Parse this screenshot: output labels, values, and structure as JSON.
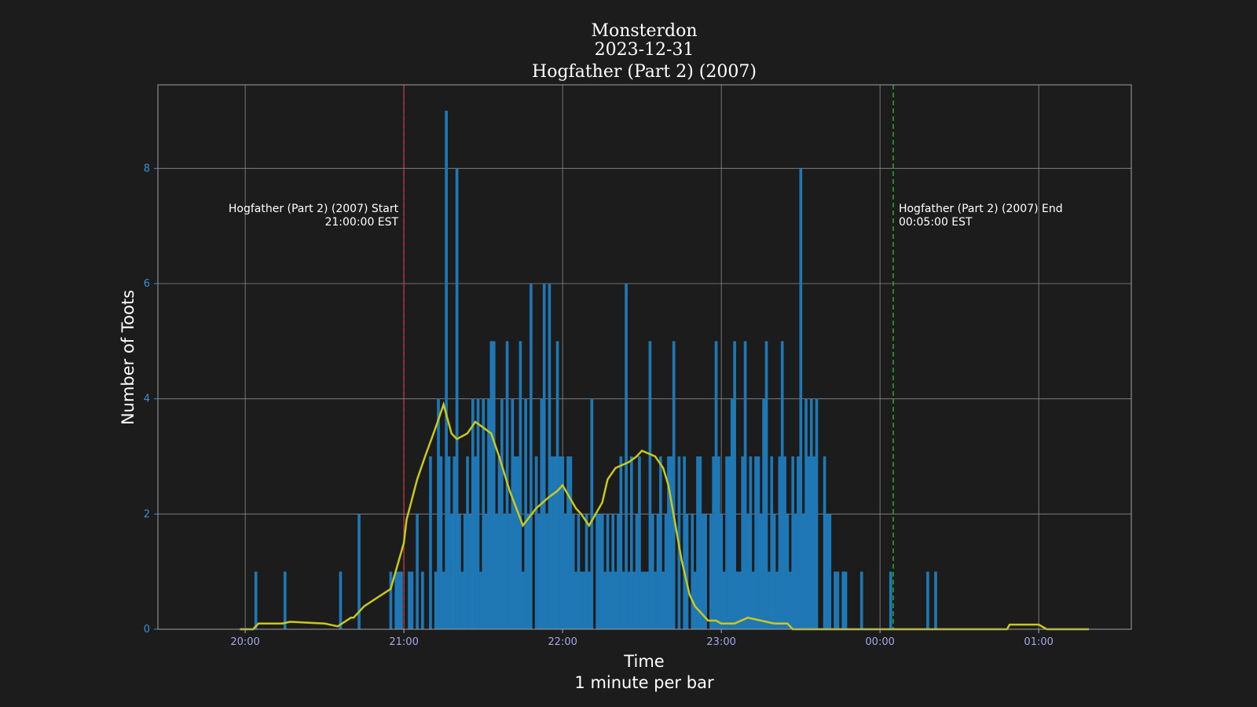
{
  "chart_data": {
    "type": "bar",
    "title_lines": [
      "Monsterdon",
      "2023-12-31",
      "Hogfather (Part 2) (2007)"
    ],
    "xlabel": "Time",
    "xlabel_sub": "1 minute per bar",
    "ylabel": "Number of Toots",
    "ylim": [
      0,
      9.45
    ],
    "yticks": [
      "0",
      "2",
      "4",
      "6",
      "8"
    ],
    "xticks": [
      "20:00",
      "21:00",
      "22:00",
      "23:00",
      "00:00",
      "01:00"
    ],
    "grid": true,
    "bar_width_minutes": 1,
    "x_start": "19:27",
    "x_end": "01:35",
    "series": [
      {
        "kind": "bar",
        "color": "#1f77b4",
        "x_first": "20:04",
        "values": [
          1,
          0,
          0,
          0,
          0,
          0,
          0,
          0,
          0,
          0,
          0,
          1,
          0,
          0,
          0,
          0,
          0,
          0,
          0,
          0,
          0,
          0,
          0,
          0,
          0,
          0,
          0,
          0,
          0,
          0,
          0,
          0,
          1,
          0,
          0,
          0,
          0,
          0,
          0,
          2,
          0,
          0,
          0,
          0,
          0,
          0,
          0,
          0,
          0,
          0,
          0,
          1,
          0,
          1,
          1,
          1,
          0,
          0,
          1,
          1,
          0,
          2,
          0,
          1,
          0,
          0,
          3,
          0,
          1,
          4,
          3,
          1,
          9,
          3,
          2,
          3,
          8,
          2,
          1,
          2,
          3,
          2,
          4,
          3,
          4,
          1,
          4,
          2,
          4,
          5,
          5,
          2,
          3,
          4,
          2,
          5,
          2,
          4,
          3,
          3,
          5,
          1,
          4,
          2,
          6,
          0,
          3,
          2,
          4,
          6,
          2,
          6,
          3,
          3,
          5,
          3,
          3,
          2,
          3,
          3,
          2,
          1,
          2,
          1,
          1,
          2,
          1,
          4,
          0,
          2,
          2,
          2,
          1,
          2,
          1,
          2,
          1,
          2,
          3,
          1,
          6,
          1,
          3,
          1,
          2,
          3,
          1,
          1,
          1,
          5,
          2,
          1,
          2,
          3,
          1,
          2,
          3,
          3,
          5,
          0,
          3,
          0,
          3,
          2,
          0,
          2,
          1,
          3,
          3,
          2,
          2,
          0,
          2,
          3,
          5,
          3,
          2,
          1,
          3,
          3,
          4,
          5,
          1,
          1,
          3,
          5,
          2,
          3,
          1,
          3,
          3,
          2,
          4,
          5,
          1,
          3,
          2,
          1,
          3,
          5,
          3,
          2,
          1,
          3,
          2,
          3,
          8,
          2,
          4,
          3,
          4,
          3,
          4,
          0,
          0,
          3,
          2,
          2,
          0,
          1,
          1,
          0,
          1,
          1,
          0,
          0,
          0,
          0,
          0,
          1,
          0,
          0,
          0,
          0,
          0,
          0,
          0,
          0,
          0,
          0,
          1,
          0,
          0,
          0,
          0,
          0,
          0,
          0,
          0,
          0,
          0,
          0,
          0,
          0,
          1,
          0,
          0,
          1
        ]
      },
      {
        "kind": "line",
        "label": "",
        "color": "#c8c81e",
        "x": [
          "19:58",
          "20:03",
          "20:05",
          "20:14",
          "20:17",
          "20:30",
          "20:35",
          "20:40",
          "20:41",
          "20:45",
          "20:50",
          "20:55",
          "21:00",
          "21:01",
          "21:05",
          "21:08",
          "21:12",
          "21:15",
          "21:18",
          "21:20",
          "21:24",
          "21:27",
          "21:30",
          "21:33",
          "21:36",
          "21:40",
          "21:45",
          "21:50",
          "21:55",
          "21:58",
          "22:00",
          "22:05",
          "22:07",
          "22:10",
          "22:15",
          "22:17",
          "22:20",
          "22:25",
          "22:28",
          "22:30",
          "22:35",
          "22:38",
          "22:40",
          "22:45",
          "22:48",
          "22:50",
          "22:55",
          "22:58",
          "23:00",
          "23:05",
          "23:10",
          "23:15",
          "23:20",
          "23:25",
          "23:27",
          "00:00",
          "00:48",
          "00:49",
          "00:55",
          "01:00",
          "01:03",
          "01:19"
        ],
        "y": [
          0,
          0,
          0.1,
          0.1,
          0.13,
          0.1,
          0.05,
          0.2,
          0.2,
          0.4,
          0.55,
          0.7,
          1.5,
          1.9,
          2.6,
          3.0,
          3.5,
          3.9,
          3.4,
          3.3,
          3.4,
          3.6,
          3.5,
          3.4,
          3.0,
          2.4,
          1.8,
          2.1,
          2.3,
          2.4,
          2.5,
          2.1,
          2.0,
          1.8,
          2.2,
          2.6,
          2.8,
          2.9,
          3.0,
          3.1,
          3.0,
          2.8,
          2.5,
          1.2,
          0.6,
          0.4,
          0.15,
          0.15,
          0.1,
          0.1,
          0.2,
          0.15,
          0.1,
          0.1,
          0,
          0,
          0,
          0.08,
          0.08,
          0.08,
          0,
          0
        ]
      }
    ],
    "markers": [
      {
        "at": "21:00",
        "color": "#d62728",
        "label_1": "Hogfather (Part 2) (2007) Start",
        "label_2": "21:00:00 EST",
        "side": "left"
      },
      {
        "at": "00:05",
        "color": "#2ca02c",
        "label_1": "Hogfather (Part 2) (2007) End",
        "label_2": "00:05:00 EST",
        "side": "right"
      }
    ]
  }
}
